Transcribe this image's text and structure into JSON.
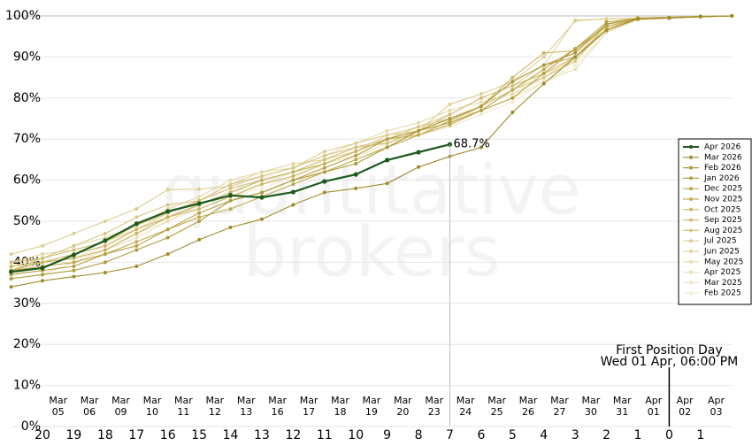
{
  "chart_data": {
    "type": "line",
    "watermark": [
      "quantitative",
      "brokers"
    ],
    "categories": [
      null,
      "20",
      "19",
      "18",
      "17",
      "16",
      "15",
      "14",
      "13",
      "12",
      "11",
      "10",
      "9",
      "8",
      "7",
      "6",
      "5",
      "4",
      "3",
      "2",
      "1",
      "0",
      "1",
      null
    ],
    "dates": [
      null,
      {
        "month": "Mar",
        "day": "05"
      },
      {
        "month": "Mar",
        "day": "06"
      },
      {
        "month": "Mar",
        "day": "09"
      },
      {
        "month": "Mar",
        "day": "10"
      },
      {
        "month": "Mar",
        "day": "11"
      },
      {
        "month": "Mar",
        "day": "12"
      },
      {
        "month": "Mar",
        "day": "13"
      },
      {
        "month": "Mar",
        "day": "16"
      },
      {
        "month": "Mar",
        "day": "17"
      },
      {
        "month": "Mar",
        "day": "18"
      },
      {
        "month": "Mar",
        "day": "19"
      },
      {
        "month": "Mar",
        "day": "20"
      },
      {
        "month": "Mar",
        "day": "23"
      },
      {
        "month": "Mar",
        "day": "24"
      },
      {
        "month": "Mar",
        "day": "25"
      },
      {
        "month": "Mar",
        "day": "26"
      },
      {
        "month": "Mar",
        "day": "27"
      },
      {
        "month": "Mar",
        "day": "30"
      },
      {
        "month": "Mar",
        "day": "31"
      },
      {
        "month": "Apr",
        "day": "01"
      },
      {
        "month": "Apr",
        "day": "02"
      },
      {
        "month": "Apr",
        "day": "03"
      },
      null
    ],
    "ylim": [
      0,
      100
    ],
    "yticks": [
      {
        "value": 0,
        "label": "0%"
      },
      {
        "value": 10,
        "label": "10%"
      },
      {
        "value": 20,
        "label": "20%"
      },
      {
        "value": 30,
        "label": "30%"
      },
      {
        "value": 40,
        "label": "40%"
      },
      {
        "value": 50,
        "label": "50%"
      },
      {
        "value": 60,
        "label": "60%"
      },
      {
        "value": 70,
        "label": "70%"
      },
      {
        "value": 80,
        "label": "80%"
      },
      {
        "value": 90,
        "label": "90%"
      },
      {
        "value": 100,
        "label": "100%"
      }
    ],
    "grid": true,
    "legend": "right",
    "annotation": {
      "at": "0",
      "title": "First Position Day",
      "subtitle": "Wed 01 Apr, 06:00 PM"
    },
    "series": [
      {
        "name": "Apr 2026",
        "color": "#1e5a1e",
        "values": [
          37.7,
          38.6,
          41.8,
          45.3,
          49.4,
          52.4,
          54.3,
          56.3,
          55.8,
          57.1,
          59.7,
          61.4,
          64.9,
          66.8,
          68.7,
          null,
          null,
          null,
          null,
          null,
          null,
          null,
          null,
          null
        ],
        "value_labels": [
          null,
          null,
          null,
          null,
          null,
          null,
          null,
          null,
          null,
          null,
          null,
          null,
          null,
          null,
          "68.7%",
          null,
          null,
          null,
          null,
          null,
          null,
          null,
          null,
          null
        ]
      },
      {
        "name": "Mar 2026",
        "color": "#a08a28",
        "values": [
          34,
          35.5,
          36.5,
          37.5,
          39,
          42,
          45.5,
          48.5,
          50.5,
          54,
          57,
          58,
          59.2,
          63.2,
          65.8,
          68,
          76.5,
          83.5,
          90,
          96.5,
          99.3,
          99.5,
          99.8,
          100
        ]
      },
      {
        "name": "Feb 2026",
        "color": "#b09a38",
        "values": [
          36,
          37,
          38,
          40,
          43,
          46,
          50,
          55,
          57,
          60,
          62,
          64,
          68,
          72,
          75,
          78,
          84,
          88,
          91,
          98,
          99.4,
          99.6,
          99.9,
          100
        ]
      },
      {
        "name": "Jan 2026",
        "color": "#b8a040",
        "values": [
          37,
          38,
          39,
          42,
          44,
          48,
          52,
          55,
          57,
          60,
          63,
          66,
          70,
          72,
          74,
          77,
          80,
          86,
          92,
          98.5,
          99.4,
          99.6,
          99.9,
          100
        ]
      },
      {
        "name": "Dec 2025",
        "color": "#c0a84c",
        "values": [
          38,
          39,
          40,
          42,
          45,
          48,
          51,
          53,
          56,
          59,
          62,
          65,
          68,
          71,
          73.5,
          77,
          82,
          87,
          92,
          97.5,
          99.2,
          99.5,
          99.9,
          100
        ]
      },
      {
        "name": "Nov 2025",
        "color": "#c8b058",
        "values": [
          38,
          40,
          41,
          43,
          47,
          51,
          54,
          57,
          60,
          62,
          64,
          67,
          70,
          71,
          74.5,
          78,
          84,
          88,
          90,
          96.5,
          99.3,
          99.5,
          99.8,
          100
        ]
      },
      {
        "name": "Oct 2025",
        "color": "#ccb664",
        "values": [
          39,
          40,
          42,
          44,
          48,
          51,
          53,
          56,
          59,
          61,
          64,
          67,
          70,
          72,
          75,
          78,
          85,
          91,
          91.5,
          98,
          99.4,
          99.6,
          99.9,
          100
        ]
      },
      {
        "name": "Sep 2025",
        "color": "#d2be74",
        "values": [
          40,
          41,
          43,
          45,
          49,
          52,
          55,
          58,
          60,
          62,
          65,
          68,
          69,
          72,
          76,
          80,
          83,
          86,
          90,
          97,
          99.3,
          99.5,
          99.8,
          100
        ]
      },
      {
        "name": "Aug 2025",
        "color": "#d8c684",
        "values": [
          38,
          41,
          44,
          47,
          51,
          54,
          55,
          59,
          61,
          63,
          66,
          68,
          70,
          73,
          75,
          78,
          82,
          85,
          89,
          98,
          99.4,
          99.6,
          99.9,
          100
        ]
      },
      {
        "name": "Jul 2025",
        "color": "#ddcd90",
        "values": [
          42,
          44,
          47,
          50,
          53,
          57.7,
          57.8,
          58.5,
          61,
          63,
          67,
          69,
          71,
          72,
          78.5,
          81,
          84,
          90,
          98.8,
          99.3,
          99.5,
          99.7,
          99.9,
          100
        ]
      },
      {
        "name": "Jun 2025",
        "color": "#e2d49c",
        "values": [
          40,
          42,
          43,
          45,
          48,
          52,
          55,
          59,
          62,
          64,
          65,
          67,
          71,
          73,
          76,
          80,
          83,
          88,
          99,
          99.2,
          99.5,
          99.7,
          99.9,
          100
        ]
      },
      {
        "name": "May 2025",
        "color": "#e6daa8",
        "values": [
          39,
          41,
          44,
          46,
          49,
          53,
          56,
          60,
          62,
          63,
          66,
          69,
          72,
          74,
          77,
          79,
          81,
          85,
          90,
          98,
          99.3,
          99.6,
          99.9,
          100
        ]
      },
      {
        "name": "Apr 2025",
        "color": "#eae0b4",
        "values": [
          36,
          37,
          40,
          43,
          46,
          50,
          54,
          57,
          60,
          62,
          65,
          67,
          70,
          72,
          75,
          77,
          80,
          84,
          87,
          96,
          99.2,
          99.5,
          99.9,
          100
        ]
      },
      {
        "name": "Mar 2025",
        "color": "#eee6c0",
        "values": [
          38,
          40,
          42,
          45,
          48,
          51,
          54,
          57,
          59,
          62,
          64,
          66,
          69,
          71,
          74,
          78,
          82,
          86,
          89,
          97,
          99.1,
          99.4,
          99.8,
          100
        ]
      },
      {
        "name": "Feb 2025",
        "color": "#f2ebcc",
        "values": [
          37,
          39,
          41,
          44,
          47,
          50,
          53,
          56,
          58,
          61,
          63,
          66,
          68,
          71,
          73,
          76,
          79,
          84,
          88,
          96,
          99,
          99.4,
          99.8,
          100
        ]
      }
    ]
  }
}
